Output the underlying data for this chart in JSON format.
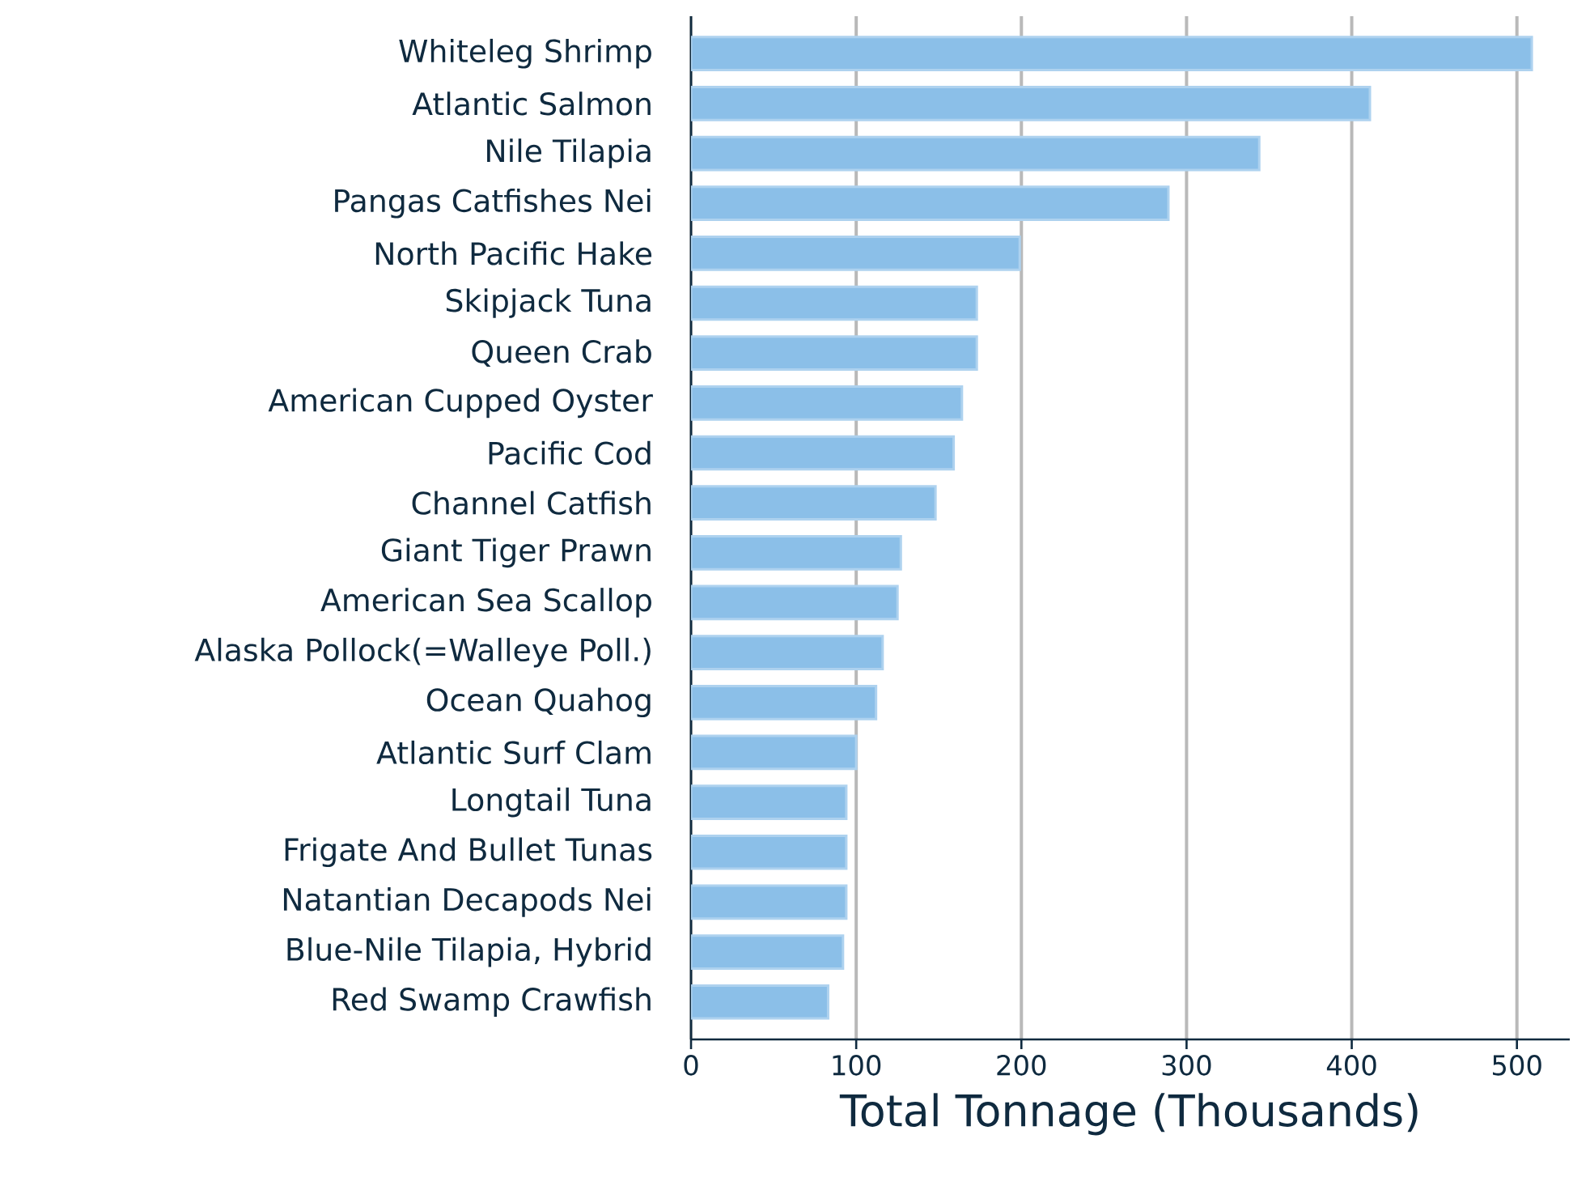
{
  "chart_data": {
    "type": "bar",
    "orientation": "horizontal",
    "xlabel": "Total Tonnage (Thousands)",
    "categories": [
      "Whiteleg Shrimp",
      "Atlantic Salmon",
      "Nile Tilapia",
      "Pangas Catfishes Nei",
      "North Pacific Hake",
      "Skipjack Tuna",
      "Queen Crab",
      "American Cupped Oyster",
      "Pacific Cod",
      "Channel Catfish",
      "Giant Tiger Prawn",
      "American Sea Scallop",
      "Alaska Pollock(=Walleye Poll.)",
      "Ocean Quahog",
      "Atlantic Surf Clam",
      "Longtail Tuna",
      "Frigate And Bullet Tunas",
      "Natantian Decapods Nei",
      "Blue-Nile Tilapia, Hybrid",
      "Red Swamp Crawfish"
    ],
    "values": [
      509,
      411,
      344,
      289,
      199,
      173,
      173,
      164,
      159,
      148,
      127,
      125,
      116,
      112,
      100,
      94,
      94,
      94,
      92,
      83
    ],
    "color": "#8bbfe8",
    "xlim": [
      0,
      532
    ],
    "xticks": [
      0,
      100,
      200,
      300,
      400,
      500
    ],
    "grid": "x"
  }
}
